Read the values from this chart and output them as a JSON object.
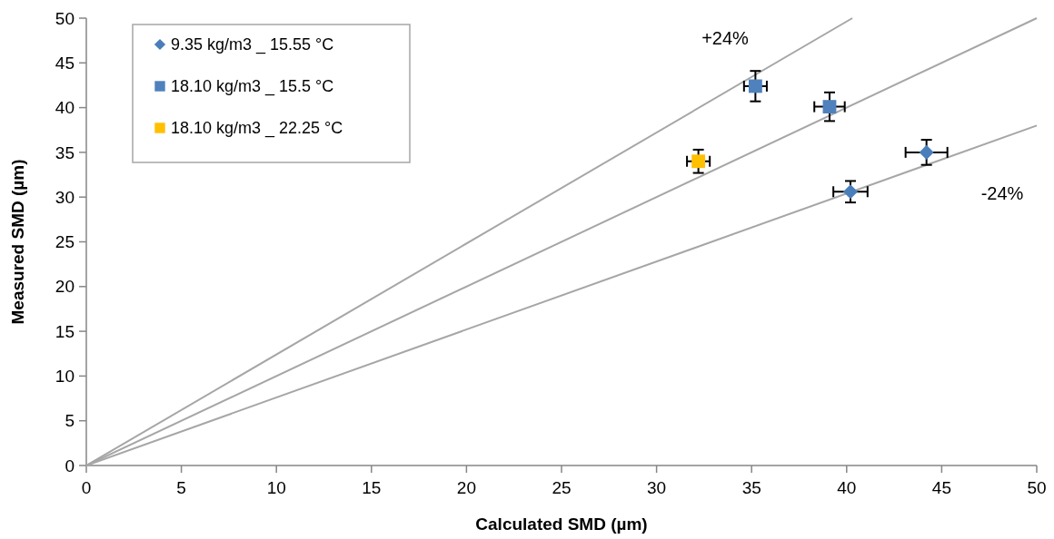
{
  "chart_data": {
    "type": "scatter",
    "xlabel": "Calculated SMD (µm)",
    "ylabel": "Measured SMD (µm)",
    "xlim": [
      0,
      50
    ],
    "ylim": [
      0,
      50
    ],
    "xticks": [
      0,
      5,
      10,
      15,
      20,
      25,
      30,
      35,
      40,
      45,
      50
    ],
    "yticks": [
      0,
      5,
      10,
      15,
      20,
      25,
      30,
      35,
      40,
      45,
      50
    ],
    "legend": "top left",
    "grid": false,
    "series": [
      {
        "name": "9.35 kg/m3 _ 15.55 °C",
        "color": "#4a7ebb",
        "marker": "diamond",
        "x": [
          40.2,
          44.2
        ],
        "values": [
          30.6,
          35.0
        ],
        "errors": [
          1.2,
          1.4
        ],
        "xerrors": [
          0.9,
          1.1
        ]
      },
      {
        "name": "18.10 kg/m3 _ 15.5 °C",
        "color": "#4f81bd",
        "marker": "square",
        "x": [
          35.2,
          39.1
        ],
        "values": [
          42.4,
          40.1
        ],
        "errors": [
          1.7,
          1.6
        ],
        "xerrors": [
          0.6,
          0.8
        ]
      },
      {
        "name": "18.10 kg/m3 _ 22.25 °C",
        "color": "#ffc000",
        "marker": "square",
        "x": [
          32.2
        ],
        "values": [
          34.0
        ],
        "errors": [
          1.3
        ],
        "xerrors": [
          0.6
        ]
      },
      {
        "type": "line",
        "color": "#a6a6a6",
        "marker": "none",
        "x": [
          0,
          40.3
        ],
        "values": [
          0,
          50
        ]
      },
      {
        "type": "line",
        "color": "#a6a6a6",
        "marker": "none",
        "x": [
          0,
          50
        ],
        "values": [
          0,
          50
        ]
      },
      {
        "type": "line",
        "color": "#a6a6a6",
        "marker": "none",
        "x": [
          0,
          50
        ],
        "values": [
          0,
          38
        ]
      }
    ],
    "annotations": [
      "+24%",
      "-24%"
    ]
  }
}
